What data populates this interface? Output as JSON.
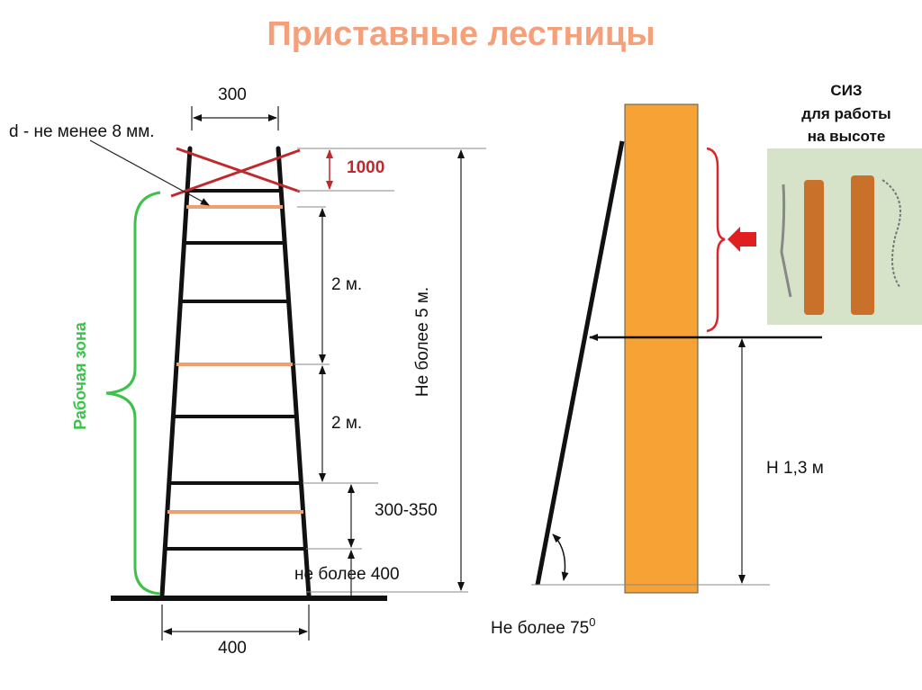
{
  "title": "Приставные лестницы",
  "ladder": {
    "top_width": "300",
    "rod_note": "d - не менее 8 мм.",
    "top_zone": "1000",
    "span_1": "2 м.",
    "span_2": "2 м.",
    "max_height": "Не более 5 м.",
    "work_zone": "Рабочая зона",
    "rung_spacing": "300-350",
    "bottom_rung": "не более 400",
    "base_width": "400"
  },
  "wall": {
    "ppe": [
      "СИЗ",
      "для работы",
      "на высоте"
    ],
    "height": "Н 1,3 м",
    "angle": "Не более 75",
    "angle_unit": "0"
  }
}
